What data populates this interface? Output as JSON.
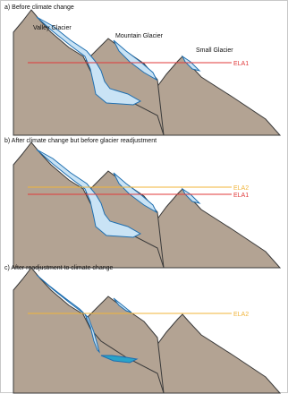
{
  "panels": [
    {
      "title": "a) Before climate change",
      "labels": {
        "valley": "Valley Glacier",
        "mountain": "Mountain Glacier",
        "small": "Small Glacier"
      },
      "lines": [
        {
          "text": "ELA1",
          "color": "#e0393a"
        }
      ]
    },
    {
      "title": "b) After climate change but before glacier readjustment",
      "labels": {},
      "lines": [
        {
          "text": "ELA2",
          "color": "#f0b43a"
        },
        {
          "text": "ELA1",
          "color": "#e0393a"
        }
      ]
    },
    {
      "title": "c) After readjustment to climate change",
      "labels": {},
      "lines": [
        {
          "text": "ELA2",
          "color": "#f0b43a"
        }
      ]
    }
  ],
  "colors": {
    "rock": "#b3a393",
    "rock_outline": "#3a3a3a",
    "ice": "#c9e3f5",
    "ice_outline": "#1f6fb0",
    "lake": "#2aa3c9",
    "ela1": "#e0393a",
    "ela2": "#f0b43a"
  }
}
